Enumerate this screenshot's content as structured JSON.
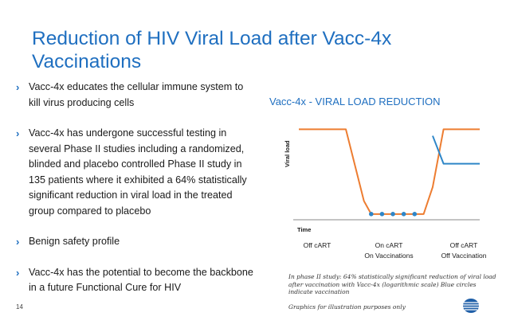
{
  "slide": {
    "title": "Reduction of HIV Viral Load after Vacc-4x Vaccinations",
    "page_number": "14"
  },
  "bullets": [
    "Vacc-4x educates the cellular immune system to kill virus producing cells",
    "Vacc-4x has undergone successful testing in several Phase II studies including a randomized, blinded and placebo controlled Phase II study in 135 patients where it exhibited a 64% statistically significant reduction in viral load in the treated group compared to placebo",
    "Benign safety profile",
    "Vacc-4x has the potential to become the backbone in a future Functional Cure for HIV"
  ],
  "colors": {
    "title": "#1f6fc0",
    "placebo_line": "#ed7d31",
    "vaccine_line": "#2e86c8",
    "dots": "#2e86c8",
    "axis": "#888888"
  },
  "chart_data": {
    "type": "line",
    "title": "Vacc-4x - VIRAL LOAD REDUCTION",
    "xlabel": "Time",
    "ylabel": "Viral load",
    "phases": [
      {
        "line1": "Off cART",
        "line2": ""
      },
      {
        "line1": "On cART",
        "line2": "On Vaccinations"
      },
      {
        "line1": "Off cART",
        "line2": "Off Vaccination"
      }
    ],
    "series": [
      {
        "color": "#ed7d31",
        "x": [
          0,
          0.26,
          0.36,
          0.4,
          0.69,
          0.74,
          0.8,
          1.0
        ],
        "y": [
          0.92,
          0.92,
          0.15,
          0.01,
          0.01,
          0.3,
          0.92,
          0.92
        ]
      },
      {
        "color": "#2e86c8",
        "x": [
          0.74,
          0.8,
          1.0
        ],
        "y": [
          0.85,
          0.55,
          0.55
        ]
      }
    ],
    "vaccination_points_x": [
      0.4,
      0.46,
      0.52,
      0.58,
      0.64
    ],
    "caption": "In phase II study: 64% statistically significant reduction of viral load after vaccination with Vacc-4x (logarithmic scale) Blue circles indicate vaccination",
    "note": "Graphics for illustration purposes only"
  }
}
